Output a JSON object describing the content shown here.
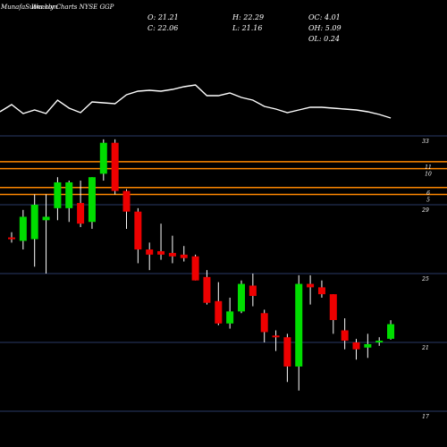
{
  "header": {
    "watermark": "MunafaSutra.com",
    "title": "Weekly Charts NYSE GGP",
    "stats": [
      {
        "label": "O",
        "value": "21.21"
      },
      {
        "label": "H",
        "value": "22.29"
      },
      {
        "label": "OC",
        "value": "4.01"
      },
      {
        "label": "C",
        "value": "22.06"
      },
      {
        "label": "L",
        "value": "21.16"
      },
      {
        "label": "OH",
        "value": "5.09"
      },
      {
        "label": "OL",
        "value": "0.24"
      }
    ]
  },
  "colors": {
    "background": "#000000",
    "up": "#00dd00",
    "down": "#ee0000",
    "wick": "#ffffff",
    "grid": "#2a3a66",
    "levels": "#ff8800",
    "indicator": "#ffffff"
  },
  "chart_data": {
    "type": "candlestick",
    "y_tick_labels": [
      {
        "label": "33",
        "value": 33
      },
      {
        "label": "29",
        "value": 29
      },
      {
        "label": "25",
        "value": 25
      },
      {
        "label": "21",
        "value": 21
      },
      {
        "label": "17",
        "value": 17
      }
    ],
    "ylim": [
      16.75,
      33.9
    ],
    "horizontal_levels": [
      {
        "label": "11",
        "value": 31.5
      },
      {
        "label": "10",
        "value": 31.1
      },
      {
        "label": "6",
        "value": 30.0
      },
      {
        "label": "5",
        "value": 29.6
      }
    ],
    "candles": [
      {
        "o": 27.1,
        "h": 27.4,
        "l": 26.8,
        "c": 27.0
      },
      {
        "o": 26.9,
        "h": 28.7,
        "l": 26.4,
        "c": 28.3
      },
      {
        "o": 27.0,
        "h": 29.6,
        "l": 25.4,
        "c": 29.0
      },
      {
        "o": 28.1,
        "h": 29.6,
        "l": 25.0,
        "c": 28.3
      },
      {
        "o": 28.8,
        "h": 30.6,
        "l": 28.1,
        "c": 30.3
      },
      {
        "o": 28.8,
        "h": 30.4,
        "l": 28.0,
        "c": 30.3
      },
      {
        "o": 29.1,
        "h": 30.4,
        "l": 27.7,
        "c": 27.9
      },
      {
        "o": 28.0,
        "h": 30.6,
        "l": 27.6,
        "c": 30.6
      },
      {
        "o": 30.8,
        "h": 32.8,
        "l": 30.4,
        "c": 32.6
      },
      {
        "o": 32.6,
        "h": 32.8,
        "l": 29.6,
        "c": 29.8
      },
      {
        "o": 29.8,
        "h": 29.9,
        "l": 27.6,
        "c": 28.6
      },
      {
        "o": 28.6,
        "h": 28.8,
        "l": 25.6,
        "c": 26.4
      },
      {
        "o": 26.4,
        "h": 26.8,
        "l": 25.2,
        "c": 26.1
      },
      {
        "o": 26.3,
        "h": 27.9,
        "l": 25.8,
        "c": 26.1
      },
      {
        "o": 26.2,
        "h": 27.2,
        "l": 25.6,
        "c": 26.0
      },
      {
        "o": 26.1,
        "h": 26.6,
        "l": 25.7,
        "c": 25.9
      },
      {
        "o": 26.0,
        "h": 26.1,
        "l": 24.6,
        "c": 24.6
      },
      {
        "o": 24.8,
        "h": 25.2,
        "l": 23.2,
        "c": 23.3
      },
      {
        "o": 23.4,
        "h": 24.5,
        "l": 22.0,
        "c": 22.1
      },
      {
        "o": 22.1,
        "h": 23.6,
        "l": 21.8,
        "c": 22.8
      },
      {
        "o": 22.8,
        "h": 24.6,
        "l": 22.7,
        "c": 24.4
      },
      {
        "o": 24.3,
        "h": 25.0,
        "l": 23.1,
        "c": 23.7
      },
      {
        "o": 22.7,
        "h": 22.9,
        "l": 21.0,
        "c": 21.6
      },
      {
        "o": 21.4,
        "h": 21.7,
        "l": 20.5,
        "c": 21.3
      },
      {
        "o": 21.3,
        "h": 21.5,
        "l": 18.7,
        "c": 19.6
      },
      {
        "o": 19.6,
        "h": 24.9,
        "l": 18.2,
        "c": 24.4
      },
      {
        "o": 24.4,
        "h": 24.9,
        "l": 23.2,
        "c": 24.2
      },
      {
        "o": 24.2,
        "h": 24.6,
        "l": 23.6,
        "c": 23.8
      },
      {
        "o": 23.8,
        "h": 23.8,
        "l": 21.5,
        "c": 22.3
      },
      {
        "o": 21.7,
        "h": 22.4,
        "l": 20.6,
        "c": 21.1
      },
      {
        "o": 21.0,
        "h": 21.2,
        "l": 20.0,
        "c": 20.6
      },
      {
        "o": 20.7,
        "h": 21.5,
        "l": 20.1,
        "c": 20.9
      },
      {
        "o": 21.0,
        "h": 21.3,
        "l": 20.8,
        "c": 21.1
      },
      {
        "o": 21.21,
        "h": 22.29,
        "l": 21.16,
        "c": 22.06
      }
    ],
    "indicator_line": [
      77,
      87,
      83,
      87,
      72,
      81,
      86,
      74,
      75,
      76,
      66,
      62,
      61,
      62,
      60,
      57,
      55,
      67,
      67,
      64,
      69,
      72,
      79,
      82,
      86,
      83,
      80,
      80,
      81,
      82,
      83,
      85,
      88,
      92
    ]
  }
}
